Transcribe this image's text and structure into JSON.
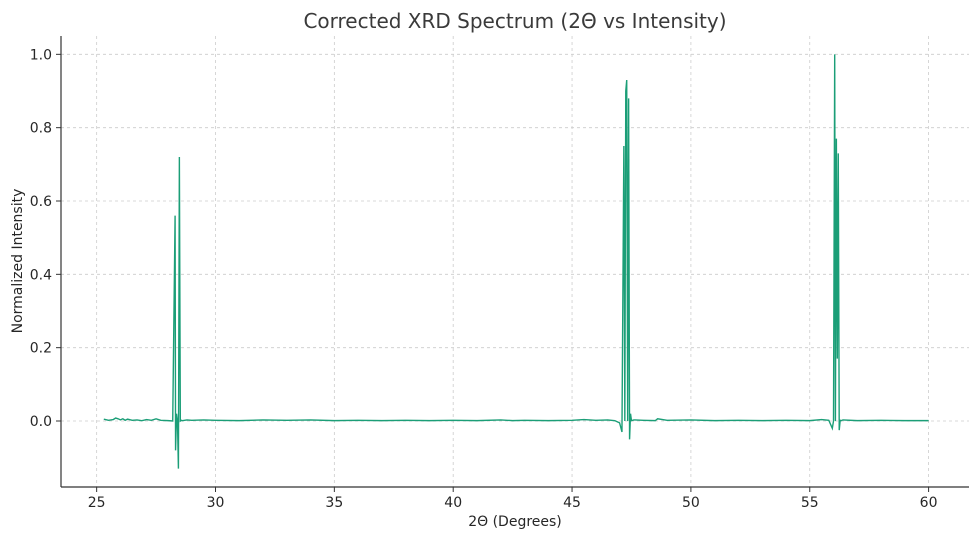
{
  "chart_data": {
    "type": "line",
    "title": "Corrected XRD Spectrum (2Θ vs Intensity)",
    "xlabel": "2Θ (Degrees)",
    "ylabel": "Normalized Intensity",
    "xlim": [
      23.5,
      61.7
    ],
    "ylim": [
      -0.18,
      1.05
    ],
    "xticks": [
      25,
      30,
      35,
      40,
      45,
      50,
      55,
      60
    ],
    "yticks": [
      0.0,
      0.2,
      0.4,
      0.6,
      0.8,
      1.0
    ],
    "ytick_labels": [
      "0.0",
      "0.2",
      "0.4",
      "0.6",
      "0.8",
      "1.0"
    ],
    "grid": true,
    "color": "#1b9e77",
    "series": [
      {
        "x": [
          25.3,
          25.5,
          25.7,
          25.8,
          25.9,
          26.0,
          26.1,
          26.2,
          26.3,
          26.5,
          26.7,
          26.9,
          27.1,
          27.3,
          27.5,
          27.7,
          28.0,
          28.2,
          28.3,
          28.32,
          28.36,
          28.4,
          28.44,
          28.48,
          28.52,
          28.56,
          28.6,
          28.8,
          29.0,
          29.5,
          30.0,
          31.0,
          32.0,
          33.0,
          34.0,
          35.0,
          36.0,
          37.0,
          38.0,
          39.0,
          40.0,
          41.0,
          42.0,
          42.5,
          43.0,
          44.0,
          45.0,
          45.5,
          46.0,
          46.5,
          46.8,
          47.0,
          47.1,
          47.18,
          47.22,
          47.26,
          47.3,
          47.34,
          47.38,
          47.42,
          47.46,
          47.5,
          47.6,
          48.0,
          48.5,
          48.6,
          49.0,
          50.0,
          51.0,
          52.0,
          53.0,
          54.0,
          55.0,
          55.5,
          55.8,
          55.95,
          56.0,
          56.05,
          56.08,
          56.12,
          56.16,
          56.2,
          56.24,
          56.28,
          56.32,
          56.4,
          57.0,
          58.0,
          59.0,
          60.0
        ],
        "y": [
          0.005,
          0.002,
          0.004,
          0.008,
          0.006,
          0.003,
          0.006,
          0.002,
          0.005,
          0.002,
          0.003,
          0.001,
          0.004,
          0.002,
          0.006,
          0.002,
          0.001,
          0.0,
          0.56,
          -0.08,
          0.02,
          0.0,
          -0.13,
          0.72,
          0.0,
          0.002,
          0.001,
          0.003,
          0.002,
          0.003,
          0.002,
          0.001,
          0.003,
          0.002,
          0.003,
          0.001,
          0.002,
          0.001,
          0.002,
          0.001,
          0.002,
          0.001,
          0.003,
          0.001,
          0.002,
          0.001,
          0.002,
          0.004,
          0.002,
          0.003,
          0.001,
          -0.005,
          -0.03,
          0.75,
          0.0,
          0.9,
          0.93,
          0.0,
          0.88,
          -0.05,
          0.02,
          0.001,
          0.003,
          0.002,
          0.001,
          0.006,
          0.002,
          0.003,
          0.001,
          0.002,
          0.001,
          0.002,
          0.001,
          0.004,
          0.002,
          -0.02,
          0.0,
          1.0,
          0.0,
          0.77,
          0.17,
          0.73,
          -0.025,
          0.002,
          0.001,
          0.003,
          0.001,
          0.002,
          0.001,
          0.001
        ]
      }
    ]
  }
}
